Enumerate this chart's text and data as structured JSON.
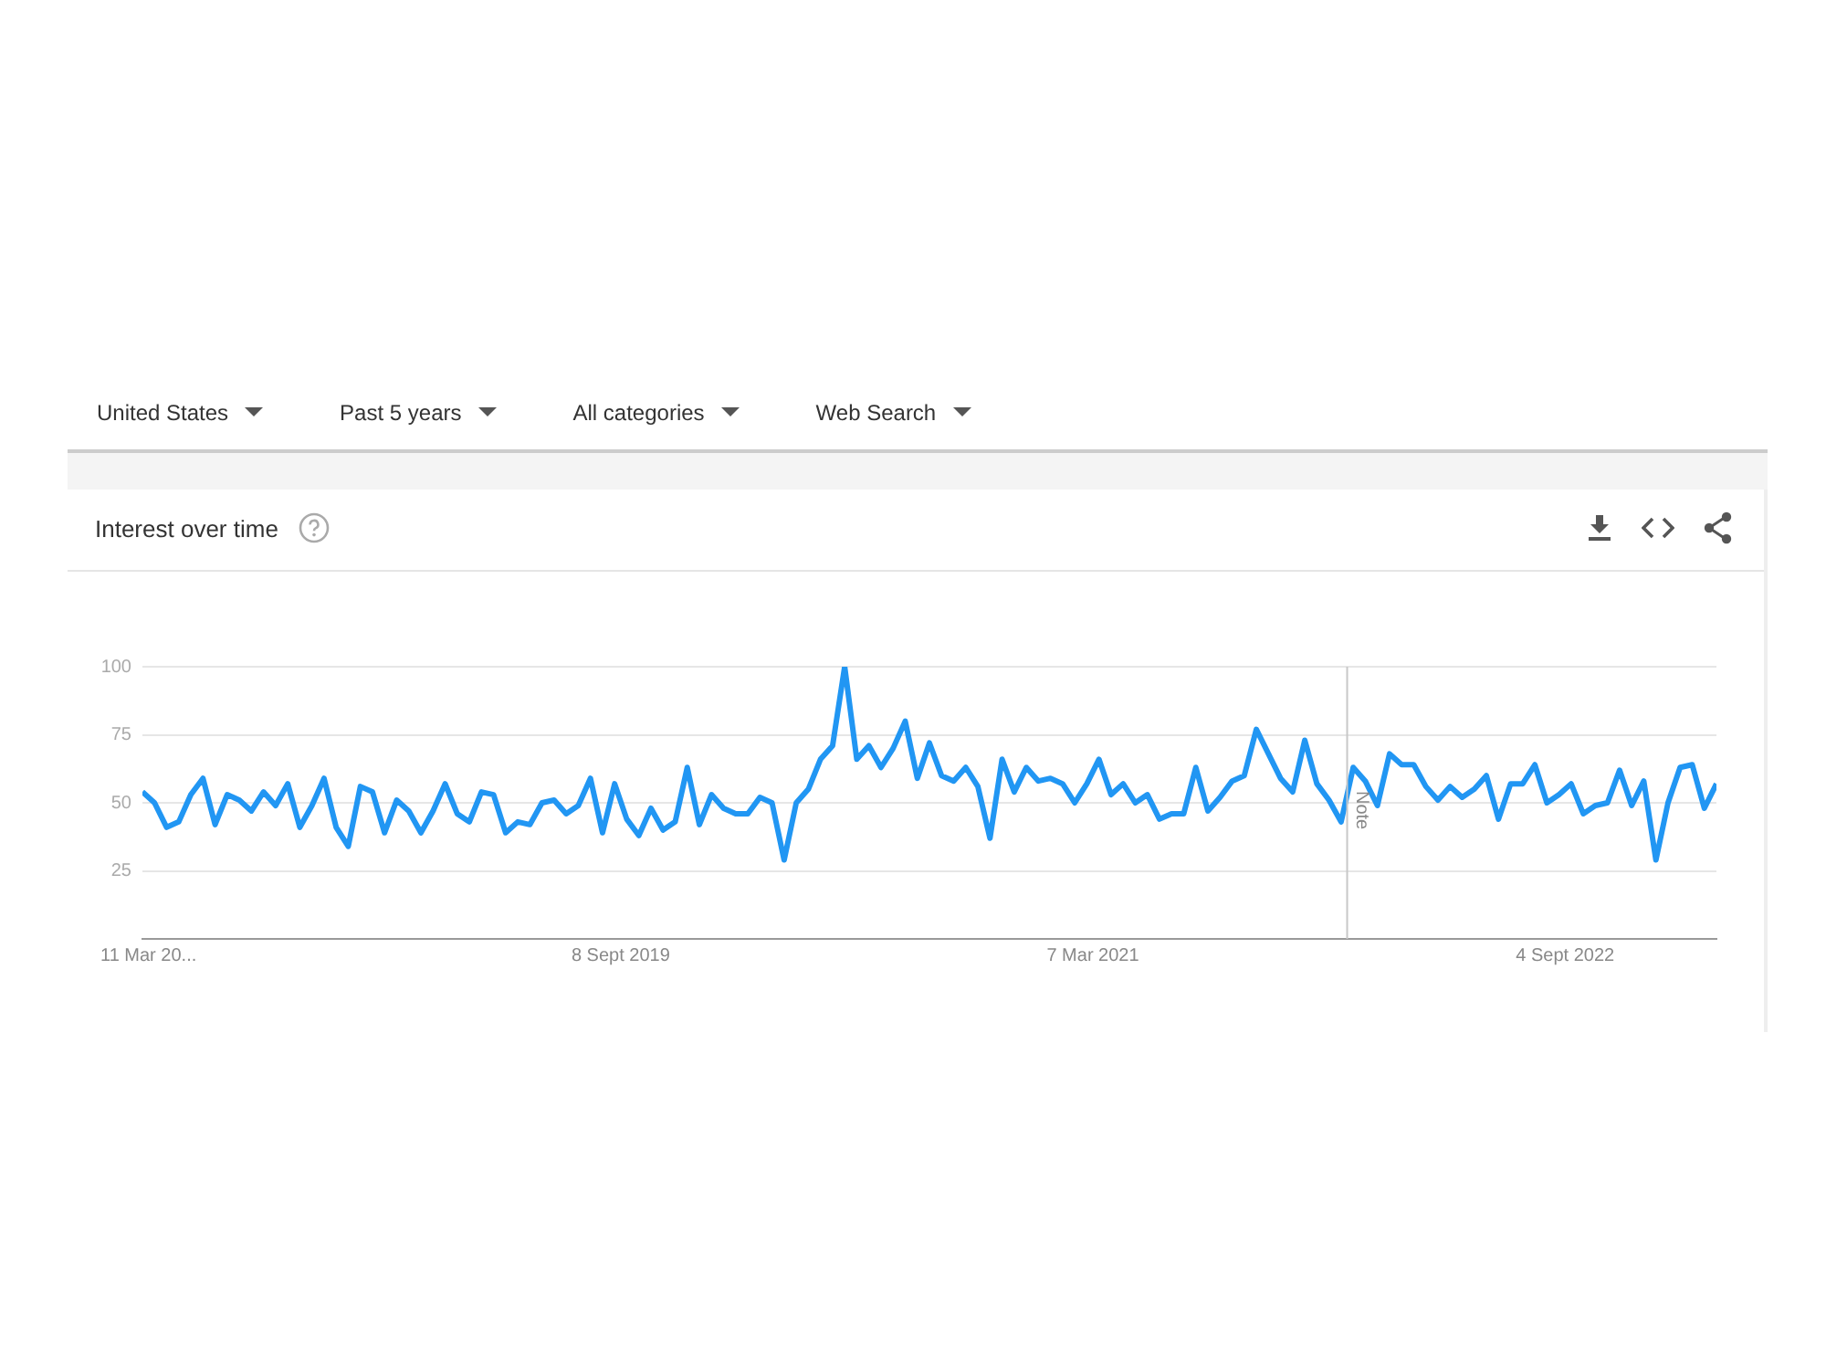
{
  "chart_data": {
    "type": "line",
    "title": "Interest over time",
    "annotations": [
      "United States",
      "Past 5 years",
      "All categories",
      "Web Search"
    ],
    "x": [
      "2018-03-04",
      "2018-03-18",
      "2018-04-01",
      "2018-04-15",
      "2018-04-29",
      "2018-05-13",
      "2018-05-27",
      "2018-06-10",
      "2018-06-24",
      "2018-07-08",
      "2018-07-22",
      "2018-08-05",
      "2018-08-19",
      "2018-09-02",
      "2018-09-16",
      "2018-09-30",
      "2018-10-14",
      "2018-10-28",
      "2018-11-11",
      "2018-11-25",
      "2018-12-09",
      "2018-12-23",
      "2019-01-06",
      "2019-01-20",
      "2019-02-03",
      "2019-02-17",
      "2019-03-03",
      "2019-03-17",
      "2019-03-31",
      "2019-04-14",
      "2019-04-28",
      "2019-05-12",
      "2019-05-26",
      "2019-06-09",
      "2019-06-23",
      "2019-07-07",
      "2019-07-21",
      "2019-08-04",
      "2019-08-18",
      "2019-09-01",
      "2019-09-15",
      "2019-09-29",
      "2019-10-13",
      "2019-10-27",
      "2019-11-10",
      "2019-11-24",
      "2019-12-08",
      "2019-12-22",
      "2020-01-05",
      "2020-01-19",
      "2020-02-02",
      "2020-02-16",
      "2020-03-01",
      "2020-03-15",
      "2020-03-29",
      "2020-04-12",
      "2020-04-26",
      "2020-05-10",
      "2020-05-24",
      "2020-06-07",
      "2020-06-21",
      "2020-07-05",
      "2020-07-19",
      "2020-08-02",
      "2020-08-16",
      "2020-08-30",
      "2020-09-13",
      "2020-09-27",
      "2020-10-11",
      "2020-10-25",
      "2020-11-08",
      "2020-11-22",
      "2020-12-06",
      "2020-12-20",
      "2021-01-03",
      "2021-01-17",
      "2021-01-31",
      "2021-02-14",
      "2021-02-28",
      "2021-03-14",
      "2021-03-28",
      "2021-04-11",
      "2021-04-25",
      "2021-05-09",
      "2021-05-23",
      "2021-06-06",
      "2021-06-20",
      "2021-07-04",
      "2021-07-18",
      "2021-08-01",
      "2021-08-15",
      "2021-08-29",
      "2021-09-12",
      "2021-09-26",
      "2021-10-10",
      "2021-10-24",
      "2021-11-07",
      "2021-11-21",
      "2021-12-05",
      "2021-12-19",
      "2022-01-02",
      "2022-01-16",
      "2022-01-30",
      "2022-02-13",
      "2022-02-27",
      "2022-03-13",
      "2022-03-27",
      "2022-04-10",
      "2022-04-24",
      "2022-05-08",
      "2022-05-22",
      "2022-06-05",
      "2022-06-19",
      "2022-07-03",
      "2022-07-17",
      "2022-07-31",
      "2022-08-14",
      "2022-08-28",
      "2022-09-11",
      "2022-09-25",
      "2022-10-09",
      "2022-10-23",
      "2022-11-06",
      "2022-11-20",
      "2022-12-04",
      "2022-12-18",
      "2023-01-01",
      "2023-01-15",
      "2023-01-29",
      "2023-02-12",
      "2023-02-26"
    ],
    "values": [
      54,
      50,
      41,
      43,
      53,
      59,
      42,
      53,
      51,
      47,
      54,
      49,
      57,
      41,
      49,
      59,
      41,
      34,
      56,
      54,
      39,
      51,
      47,
      39,
      47,
      57,
      46,
      43,
      54,
      53,
      39,
      43,
      42,
      50,
      51,
      46,
      49,
      59,
      39,
      57,
      44,
      38,
      48,
      40,
      43,
      63,
      42,
      53,
      48,
      46,
      46,
      52,
      50,
      29,
      50,
      55,
      66,
      71,
      100,
      66,
      71,
      63,
      70,
      80,
      59,
      72,
      60,
      58,
      63,
      56,
      37,
      66,
      54,
      63,
      58,
      59,
      57,
      50,
      57,
      66,
      53,
      57,
      50,
      53,
      44,
      46,
      46,
      63,
      47,
      52,
      58,
      60,
      77,
      68,
      59,
      54,
      73,
      57,
      51,
      43,
      63,
      58,
      49,
      68,
      64,
      64,
      56,
      51,
      56,
      52,
      55,
      60,
      44,
      57,
      57,
      64,
      50,
      53,
      57,
      46,
      49,
      50,
      62,
      49,
      58,
      29,
      50,
      63,
      64,
      48,
      57
    ],
    "color": "#2196f3",
    "marker": "none",
    "xlim": [
      "2018-03-04",
      "2023-02-26"
    ],
    "xticks": [
      {
        "value": "2018-03-11",
        "label": "11 Mar 20..."
      },
      {
        "value": "2019-09-08",
        "label": "8 Sept 2019"
      },
      {
        "value": "2021-03-07",
        "label": "7 Mar 2021"
      },
      {
        "value": "2022-09-04",
        "label": "4 Sept 2022"
      }
    ],
    "ylim": [
      0,
      100
    ],
    "yticks": [
      25,
      50,
      75,
      100
    ],
    "grid": "y",
    "ref_lines": [
      {
        "axis": "x",
        "value": "2021-12-26",
        "label": "Note"
      }
    ]
  }
}
